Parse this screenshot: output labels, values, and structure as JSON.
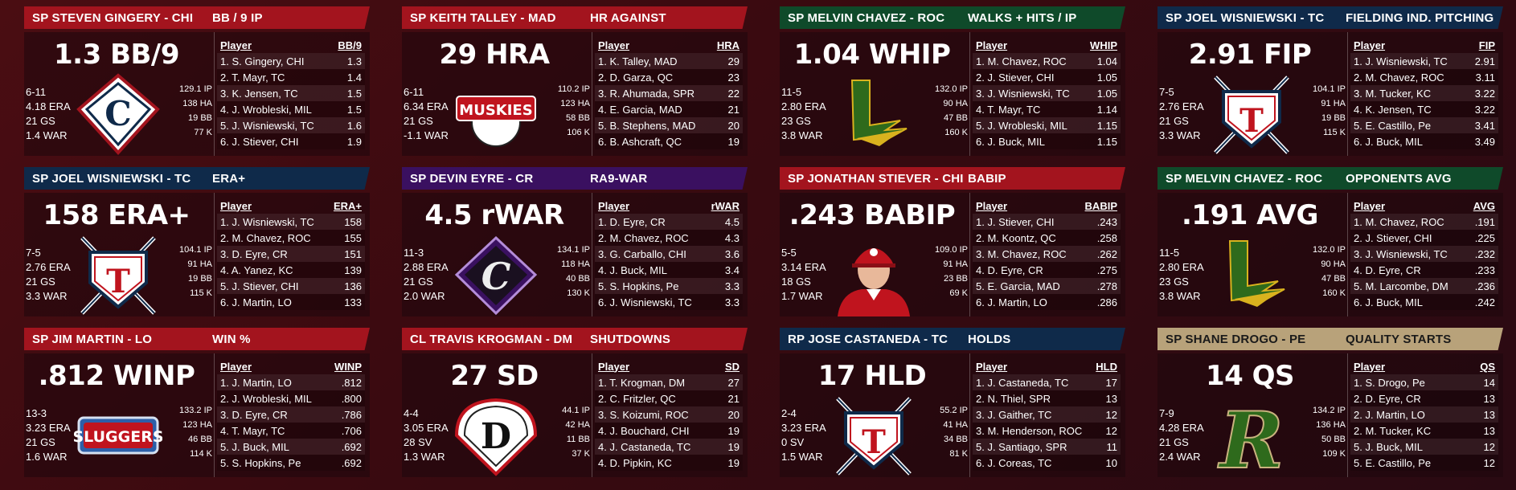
{
  "cards": [
    {
      "player": "SP STEVEN GINGERY - CHI",
      "category": "BB / 9 IP",
      "stat": "1.3 BB/9",
      "record": "6-11",
      "era": "4.18 ERA",
      "gs": "21 GS",
      "war": "1.4 WAR",
      "ip": "129.1 IP",
      "ha": "138 HA",
      "bb": "19 BB",
      "k": "77 K",
      "logo": "chicago-c-logo-icon",
      "header_color": "#a3141e",
      "col_player": "Player",
      "col_stat": "BB/9",
      "rows": [
        [
          "1. S. Gingery, CHI",
          "1.3"
        ],
        [
          "2. T. Mayr, TC",
          "1.4"
        ],
        [
          "3. K. Jensen, TC",
          "1.5"
        ],
        [
          "4. J. Wrobleski, MIL",
          "1.5"
        ],
        [
          "5. J. Wisniewski, TC",
          "1.6"
        ],
        [
          "6. J. Stiever, CHI",
          "1.9"
        ]
      ]
    },
    {
      "player": "SP KEITH TALLEY - MAD",
      "category": "HR AGAINST",
      "stat": "29 HRA",
      "record": "6-11",
      "era": "6.34 ERA",
      "gs": "21 GS",
      "war": "-1.1 WAR",
      "ip": "110.2 IP",
      "ha": "123 HA",
      "bb": "58 BB",
      "k": "106 K",
      "logo": "muskies-logo-icon",
      "header_color": "#a3141e",
      "col_player": "Player",
      "col_stat": "HRA",
      "rows": [
        [
          "1. K. Talley, MAD",
          "29"
        ],
        [
          "2. D. Garza, QC",
          "23"
        ],
        [
          "3. R. Ahumada, SPR",
          "22"
        ],
        [
          "4. E. Garcia, MAD",
          "21"
        ],
        [
          "5. B. Stephens, MAD",
          "20"
        ],
        [
          "6. B. Ashcraft, QC",
          "19"
        ]
      ]
    },
    {
      "player": "SP MELVIN CHAVEZ - ROC",
      "category": "WALKS + HITS / IP",
      "stat": "1.04 WHIP",
      "record": "11-5",
      "era": "2.80 ERA",
      "gs": "23 GS",
      "war": "3.8 WAR",
      "ip": "132.0 IP",
      "ha": "90 HA",
      "bb": "47 BB",
      "k": "160 K",
      "logo": "lightning-l-logo-icon",
      "header_color": "#0f4a2a",
      "col_player": "Player",
      "col_stat": "WHIP",
      "rows": [
        [
          "1. M. Chavez, ROC",
          "1.04"
        ],
        [
          "2. J. Stiever, CHI",
          "1.05"
        ],
        [
          "3. J. Wisniewski, TC",
          "1.05"
        ],
        [
          "4. T. Mayr, TC",
          "1.14"
        ],
        [
          "5. J. Wrobleski, MIL",
          "1.15"
        ],
        [
          "6. J. Buck, MIL",
          "1.15"
        ]
      ]
    },
    {
      "player": "SP JOEL WISNIEWSKI - TC",
      "category": "FIELDING IND. PITCHING",
      "stat": "2.91 FIP",
      "record": "7-5",
      "era": "2.76 ERA",
      "gs": "21 GS",
      "war": "3.3 WAR",
      "ip": "104.1 IP",
      "ha": "91 HA",
      "bb": "19 BB",
      "k": "115 K",
      "logo": "twins-t-logo-icon",
      "header_color": "#0f2a4a",
      "col_player": "Player",
      "col_stat": "FIP",
      "rows": [
        [
          "1. J. Wisniewski, TC",
          "2.91"
        ],
        [
          "2. M. Chavez, ROC",
          "3.11"
        ],
        [
          "3. M. Tucker, KC",
          "3.22"
        ],
        [
          "4. K. Jensen, TC",
          "3.22"
        ],
        [
          "5. E. Castillo, Pe",
          "3.41"
        ],
        [
          "6. J. Buck, MIL",
          "3.49"
        ]
      ]
    },
    {
      "player": "SP JOEL WISNIEWSKI - TC",
      "category": "ERA+",
      "stat": "158 ERA+",
      "record": "7-5",
      "era": "2.76 ERA",
      "gs": "21 GS",
      "war": "3.3 WAR",
      "ip": "104.1 IP",
      "ha": "91 HA",
      "bb": "19 BB",
      "k": "115 K",
      "logo": "twins-t-logo-icon",
      "header_color": "#0f2a4a",
      "col_player": "Player",
      "col_stat": "ERA+",
      "rows": [
        [
          "1. J. Wisniewski, TC",
          "158"
        ],
        [
          "2. M. Chavez, ROC",
          "155"
        ],
        [
          "3. D. Eyre, CR",
          "151"
        ],
        [
          "4. A. Yanez, KC",
          "139"
        ],
        [
          "5. J. Stiever, CHI",
          "136"
        ],
        [
          "6. J. Martin, LO",
          "133"
        ]
      ]
    },
    {
      "player": "SP DEVIN EYRE - CR",
      "category": "RA9-WAR",
      "stat": "4.5 rWAR",
      "record": "11-3",
      "era": "2.88 ERA",
      "gs": "21 GS",
      "war": "2.0 WAR",
      "ip": "134.1 IP",
      "ha": "118 HA",
      "bb": "40 BB",
      "k": "130 K",
      "logo": "cedar-c-diamond-logo-icon",
      "header_color": "#3a1060",
      "col_player": "Player",
      "col_stat": "rWAR",
      "rows": [
        [
          "1. D. Eyre, CR",
          "4.5"
        ],
        [
          "2. M. Chavez, ROC",
          "4.3"
        ],
        [
          "3. G. Carballo, CHI",
          "3.6"
        ],
        [
          "4. J. Buck, MIL",
          "3.4"
        ],
        [
          "5. S. Hopkins, Pe",
          "3.3"
        ],
        [
          "6. J. Wisniewski, TC",
          "3.3"
        ]
      ]
    },
    {
      "player": "SP JONATHAN STIEVER - CHI",
      "category": "BABIP",
      "stat": ".243 BABIP",
      "record": "5-5",
      "era": "3.14 ERA",
      "gs": "18 GS",
      "war": "1.7 WAR",
      "ip": "109.0 IP",
      "ha": "91 HA",
      "bb": "23 BB",
      "k": "69 K",
      "logo": "player-portrait-icon",
      "header_color": "#a3141e",
      "col_player": "Player",
      "col_stat": "BABIP",
      "rows": [
        [
          "1. J. Stiever, CHI",
          ".243"
        ],
        [
          "2. M. Koontz, QC",
          ".258"
        ],
        [
          "3. M. Chavez, ROC",
          ".262"
        ],
        [
          "4. D. Eyre, CR",
          ".275"
        ],
        [
          "5. E. Garcia, MAD",
          ".278"
        ],
        [
          "6. J. Martin, LO",
          ".286"
        ]
      ]
    },
    {
      "player": "SP MELVIN CHAVEZ - ROC",
      "category": "OPPONENTS AVG",
      "stat": ".191 AVG",
      "record": "11-5",
      "era": "2.80 ERA",
      "gs": "23 GS",
      "war": "3.8 WAR",
      "ip": "132.0 IP",
      "ha": "90 HA",
      "bb": "47 BB",
      "k": "160 K",
      "logo": "lightning-l-logo-icon",
      "header_color": "#0f4a2a",
      "col_player": "Player",
      "col_stat": "AVG",
      "rows": [
        [
          "1. M. Chavez, ROC",
          ".191"
        ],
        [
          "2. J. Stiever, CHI",
          ".225"
        ],
        [
          "3. J. Wisniewski, TC",
          ".232"
        ],
        [
          "4. D. Eyre, CR",
          ".233"
        ],
        [
          "5. M. Larcombe, DM",
          ".236"
        ],
        [
          "6. J. Buck, MIL",
          ".242"
        ]
      ]
    },
    {
      "player": "SP JIM MARTIN - LO",
      "category": "WIN %",
      "stat": ".812 WINP",
      "record": "13-3",
      "era": "3.23 ERA",
      "gs": "21 GS",
      "war": "1.6 WAR",
      "ip": "133.2 IP",
      "ha": "123 HA",
      "bb": "46 BB",
      "k": "114 K",
      "logo": "sluggers-logo-icon",
      "header_color": "#a3141e",
      "col_player": "Player",
      "col_stat": "WINP",
      "rows": [
        [
          "1. J. Martin, LO",
          ".812"
        ],
        [
          "2. J. Wrobleski, MIL",
          ".800"
        ],
        [
          "3. D. Eyre, CR",
          ".786"
        ],
        [
          "4. T. Mayr, TC",
          ".706"
        ],
        [
          "5. J. Buck, MIL",
          ".692"
        ],
        [
          "5. S. Hopkins, Pe",
          ".692"
        ]
      ]
    },
    {
      "player": "CL TRAVIS KROGMAN - DM",
      "category": "SHUTDOWNS",
      "stat": "27 SD",
      "record": "4-4",
      "era": "3.05 ERA",
      "gs": "28 SV",
      "war": "1.3 WAR",
      "ip": "44.1 IP",
      "ha": "42 HA",
      "bb": "11 BB",
      "k": "37 K",
      "logo": "d-plate-logo-icon",
      "header_color": "#a3141e",
      "col_player": "Player",
      "col_stat": "SD",
      "rows": [
        [
          "1. T. Krogman, DM",
          "27"
        ],
        [
          "2. C. Fritzler, QC",
          "21"
        ],
        [
          "3. S. Koizumi, ROC",
          "20"
        ],
        [
          "4. J. Bouchard, CHI",
          "19"
        ],
        [
          "4. J. Castaneda, TC",
          "19"
        ],
        [
          "4. D. Pipkin, KC",
          "19"
        ]
      ]
    },
    {
      "player": "RP JOSE CASTANEDA - TC",
      "category": "HOLDS",
      "stat": "17 HLD",
      "record": "2-4",
      "era": "3.23 ERA",
      "gs": "0 SV",
      "war": "1.5 WAR",
      "ip": "55.2 IP",
      "ha": "41 HA",
      "bb": "34 BB",
      "k": "81 K",
      "logo": "twins-t-logo-icon",
      "header_color": "#0f2a4a",
      "col_player": "Player",
      "col_stat": "HLD",
      "rows": [
        [
          "1. J. Castaneda, TC",
          "17"
        ],
        [
          "2. N. Thiel, SPR",
          "13"
        ],
        [
          "3. J. Gaither, TC",
          "12"
        ],
        [
          "3. M. Henderson, ROC",
          "12"
        ],
        [
          "5. J. Santiago, SPR",
          "11"
        ],
        [
          "6. J. Coreas, TC",
          "10"
        ]
      ]
    },
    {
      "player": "SP SHANE DROGO - PE",
      "category": "QUALITY STARTS",
      "stat": "14 QS",
      "record": "7-9",
      "era": "4.28 ERA",
      "gs": "21 GS",
      "war": "2.4 WAR",
      "ip": "134.2 IP",
      "ha": "136 HA",
      "bb": "50 BB",
      "k": "109 K",
      "logo": "green-r-logo-icon",
      "header_color": "#b8a27a",
      "header_text_color": "#1a1a1a",
      "col_player": "Player",
      "col_stat": "QS",
      "rows": [
        [
          "1. S. Drogo, Pe",
          "14"
        ],
        [
          "2. D. Eyre, CR",
          "13"
        ],
        [
          "2. J. Martin, LO",
          "13"
        ],
        [
          "2. M. Tucker, KC",
          "13"
        ],
        [
          "5. J. Buck, MIL",
          "12"
        ],
        [
          "5. E. Castillo, Pe",
          "12"
        ]
      ]
    }
  ]
}
